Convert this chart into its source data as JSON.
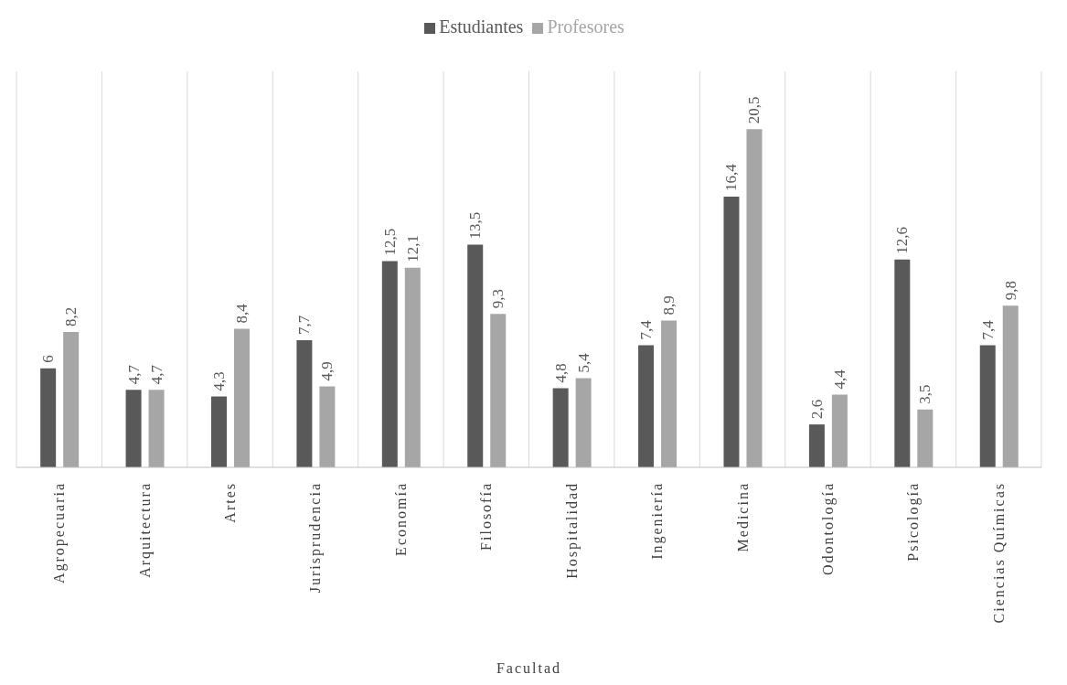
{
  "chart_data": {
    "type": "bar",
    "xlabel": "Facultad",
    "categories": [
      "Agropecuaria",
      "Arquitectura",
      "Artes",
      "Jurisprudencia",
      "Economía",
      "Filosofía",
      "Hospitalidad",
      "Ingeniería",
      "Medicina",
      "Odontología",
      "Psicología",
      "Ciencias Químicas"
    ],
    "series": [
      {
        "name": "Estudiantes",
        "color": "#595959",
        "values": [
          6,
          4.7,
          4.3,
          7.7,
          12.5,
          13.5,
          4.8,
          7.4,
          16.4,
          2.6,
          12.6,
          7.4
        ],
        "value_labels": [
          "6",
          "4,7",
          "4,3",
          "7,7",
          "12,5",
          "13,5",
          "4,8",
          "7,4",
          "16,4",
          "2,6",
          "12,6",
          "7,4"
        ]
      },
      {
        "name": "Profesores",
        "color": "#a6a6a6",
        "values": [
          8.2,
          4.7,
          8.4,
          4.9,
          12.1,
          9.3,
          5.4,
          8.9,
          20.5,
          4.4,
          3.5,
          9.8
        ],
        "value_labels": [
          "8,2",
          "4,7",
          "8,4",
          "4,9",
          "12,1",
          "9,3",
          "5,4",
          "8,9",
          "20,5",
          "4,4",
          "3,5",
          "9,8"
        ]
      }
    ],
    "grid": "x",
    "legend": "top",
    "tick_labels": "x"
  }
}
